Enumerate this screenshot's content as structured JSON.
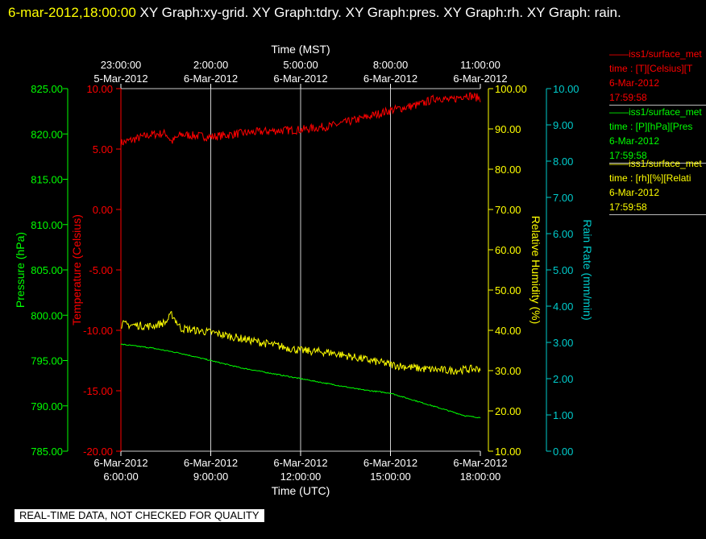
{
  "header": {
    "timestamp": "6-mar-2012,18:00:00",
    "title": "XY Graph:xy-grid.  XY Graph:tdry.  XY Graph:pres.  XY Graph:rh.  XY Graph: rain."
  },
  "legend": [
    {
      "line1": "iss1/surface_met",
      "line2": "time : [T][Celsius][T",
      "line3": "6-Mar-2012",
      "line4": "17:59:58",
      "color": "#ff0000"
    },
    {
      "line1": "iss1/surface_met",
      "line2": "time : [P][hPa][Pres",
      "line3": "6-Mar-2012",
      "line4": "17:59:58",
      "color": "#00ff00"
    },
    {
      "line1": "iss1/surface_met",
      "line2": "time : [rh][%][Relati",
      "line3": "6-Mar-2012",
      "line4": "17:59:58",
      "color": "#ffff00"
    }
  ],
  "warning": "REAL-TIME DATA, NOT CHECKED FOR QUALITY",
  "chart_data": {
    "type": "line",
    "top_axis": {
      "label": "Time (MST)",
      "ticks": [
        {
          "t": 0,
          "line1": "23:00:00",
          "line2": "5-Mar-2012"
        },
        {
          "t": 3,
          "line1": "2:00:00",
          "line2": "6-Mar-2012"
        },
        {
          "t": 6,
          "line1": "5:00:00",
          "line2": "6-Mar-2012"
        },
        {
          "t": 9,
          "line1": "8:00:00",
          "line2": "6-Mar-2012"
        },
        {
          "t": 12,
          "line1": "11:00:00",
          "line2": "6-Mar-2012"
        }
      ]
    },
    "bottom_axis": {
      "label": "Time (UTC)",
      "ticks": [
        {
          "t": 0,
          "line1": "6-Mar-2012",
          "line2": "6:00:00"
        },
        {
          "t": 3,
          "line1": "6-Mar-2012",
          "line2": "9:00:00"
        },
        {
          "t": 6,
          "line1": "6-Mar-2012",
          "line2": "12:00:00"
        },
        {
          "t": 9,
          "line1": "6-Mar-2012",
          "line2": "15:00:00"
        },
        {
          "t": 12,
          "line1": "6-Mar-2012",
          "line2": "18:00:00"
        }
      ]
    },
    "xlim": [
      0,
      12
    ],
    "grid": true,
    "axes": {
      "pressure": {
        "label": "Pressure (hPa)",
        "color": "#00ff00",
        "ylim": [
          785,
          825
        ],
        "ticks": [
          "785.00",
          "790.00",
          "795.00",
          "800.00",
          "805.00",
          "810.00",
          "815.00",
          "820.00",
          "825.00"
        ]
      },
      "temperature": {
        "label": "Temperature (Celsius)",
        "color": "#ff0000",
        "ylim": [
          -20,
          10
        ],
        "ticks": [
          "-20.00",
          "-15.00",
          "-10.00",
          "-5.00",
          "0.00",
          "5.00",
          "10.00"
        ]
      },
      "rh": {
        "label": "Relative Humidity (%)",
        "color": "#ffff00",
        "ylim": [
          10,
          100
        ],
        "ticks": [
          "10.00",
          "20.00",
          "30.00",
          "40.00",
          "50.00",
          "60.00",
          "70.00",
          "80.00",
          "90.00",
          "100.00"
        ]
      },
      "rain": {
        "label": "Rain Rate (mm/min)",
        "color": "#00cccc",
        "ylim": [
          0,
          10
        ],
        "ticks": [
          "0.00",
          "1.00",
          "2.00",
          "3.00",
          "4.00",
          "5.00",
          "6.00",
          "7.00",
          "8.00",
          "9.00",
          "10.00"
        ]
      }
    },
    "series": [
      {
        "axis": "temperature",
        "color": "#ff0000",
        "noise": 0.35,
        "x": [
          0,
          1,
          1.5,
          1.7,
          2,
          3,
          4,
          5,
          6,
          7,
          8,
          9,
          10,
          10.6,
          11,
          11.5,
          12
        ],
        "y": [
          5.5,
          6.2,
          6.3,
          5.6,
          6.2,
          6.0,
          6.3,
          6.5,
          6.6,
          6.9,
          7.5,
          8.2,
          8.7,
          9.3,
          9.0,
          9.5,
          9.2
        ]
      },
      {
        "axis": "pressure",
        "color": "#00ff00",
        "noise": 0.06,
        "x": [
          0,
          1,
          2,
          3,
          4,
          5,
          6,
          7,
          8,
          9,
          9.5,
          10,
          11,
          11.5,
          12
        ],
        "y": [
          796.8,
          796.4,
          795.8,
          795.0,
          794.2,
          793.6,
          793.0,
          792.4,
          791.8,
          791.4,
          790.9,
          790.4,
          789.4,
          788.9,
          788.7
        ]
      },
      {
        "axis": "rh",
        "color": "#ffff00",
        "noise": 1.0,
        "x": [
          0,
          1,
          1.5,
          1.7,
          2,
          3,
          4,
          5,
          6,
          7,
          8,
          9,
          10,
          11,
          12
        ],
        "y": [
          41.5,
          41.0,
          42.0,
          44.0,
          40.5,
          39.5,
          38.0,
          36.5,
          35.0,
          34.5,
          33.0,
          31.5,
          30.5,
          30.0,
          30.5
        ]
      }
    ]
  }
}
